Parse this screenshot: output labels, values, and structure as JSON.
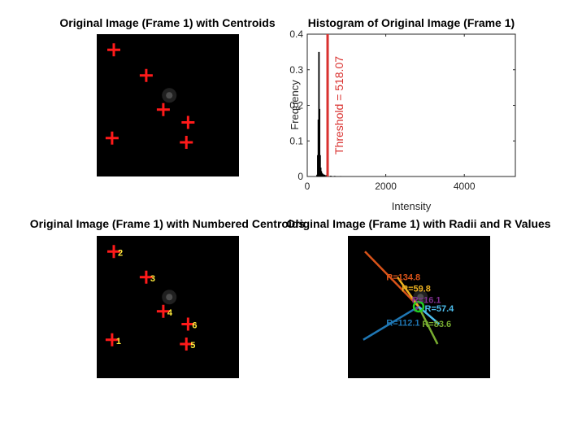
{
  "panels": {
    "p1": {
      "title": "Original Image (Frame 1) with Centroids"
    },
    "p2": {
      "title": "Histogram of Original Image (Frame 1)"
    },
    "p3": {
      "title": "Original Image (Frame 1) with Numbered Centroids"
    },
    "p4": {
      "title": "Original Image (Frame 1) with Radii and R Values"
    }
  },
  "colors": {
    "cross": "#ff1a1a",
    "label": "#ffeb3b",
    "threshold": "#d9312f",
    "center_circle": "#22cc22",
    "bars": "#000000"
  },
  "chart_data": [
    {
      "type": "scatter",
      "title": "Original Image (Frame 1) with Centroids",
      "marker": "+",
      "points_frac": [
        {
          "x": 0.2,
          "y": 0.11
        },
        {
          "x": 0.58,
          "y": 0.29
        },
        {
          "x": 0.78,
          "y": 0.53
        },
        {
          "x": 1.07,
          "y": 0.62
        },
        {
          "x": 0.18,
          "y": 0.73
        },
        {
          "x": 1.05,
          "y": 0.76
        }
      ]
    },
    {
      "type": "bar",
      "title": "Histogram of Original Image (Frame 1)",
      "xlabel": "Intensity",
      "ylabel": "Frequency",
      "xlim": [
        0,
        5300
      ],
      "ylim": [
        0,
        0.4
      ],
      "xticks": [
        "0",
        "2000",
        "4000"
      ],
      "yticks": [
        "0",
        "0.1",
        "0.2",
        "0.3",
        "0.4"
      ],
      "bins": [
        {
          "x": 250,
          "y": 0.005
        },
        {
          "x": 268,
          "y": 0.06
        },
        {
          "x": 283,
          "y": 0.16
        },
        {
          "x": 298,
          "y": 0.35
        },
        {
          "x": 313,
          "y": 0.19
        },
        {
          "x": 328,
          "y": 0.06
        },
        {
          "x": 343,
          "y": 0.025
        },
        {
          "x": 358,
          "y": 0.015
        },
        {
          "x": 373,
          "y": 0.01
        },
        {
          "x": 390,
          "y": 0.008
        },
        {
          "x": 410,
          "y": 0.006
        },
        {
          "x": 440,
          "y": 0.005
        },
        {
          "x": 480,
          "y": 0.004
        },
        {
          "x": 530,
          "y": 0.003
        },
        {
          "x": 600,
          "y": 0.002
        },
        {
          "x": 700,
          "y": 0.0015
        },
        {
          "x": 850,
          "y": 0.001
        }
      ],
      "threshold": {
        "value": 518.07,
        "label": "Threshold = 518.07"
      }
    },
    {
      "type": "scatter",
      "title": "Original Image (Frame 1) with Numbered Centroids",
      "marker": "+",
      "points_frac": [
        {
          "x": 0.18,
          "y": 0.73,
          "label": "1"
        },
        {
          "x": 0.2,
          "y": 0.11,
          "label": "2"
        },
        {
          "x": 0.58,
          "y": 0.29,
          "label": "3"
        },
        {
          "x": 0.78,
          "y": 0.53,
          "label": "4"
        },
        {
          "x": 1.05,
          "y": 0.76,
          "label": "5"
        },
        {
          "x": 1.07,
          "y": 0.62,
          "label": "6"
        }
      ]
    },
    {
      "type": "line",
      "title": "Original Image (Frame 1) with Radii and R Values",
      "center_frac": {
        "x": 0.72,
        "y": 0.52
      },
      "radii": [
        {
          "label": "R=112.1",
          "color": "#1f77b4",
          "end": {
            "x": 0.18,
            "y": 0.73
          },
          "lab": {
            "x": 0.45,
            "y": 0.63
          }
        },
        {
          "label": "R=134.8",
          "color": "#d95319",
          "end": {
            "x": 0.2,
            "y": 0.11
          },
          "lab": {
            "x": 0.45,
            "y": 0.31
          }
        },
        {
          "label": "R=59.8",
          "color": "#edb120",
          "end": {
            "x": 0.58,
            "y": 0.29
          },
          "lab": {
            "x": 0.63,
            "y": 0.39
          }
        },
        {
          "label": "R=16.1",
          "color": "#7e2f8e",
          "end": {
            "x": 0.78,
            "y": 0.53
          },
          "lab": {
            "x": 0.75,
            "y": 0.47
          }
        },
        {
          "label": "R=83.6",
          "color": "#77ac30",
          "end": {
            "x": 1.05,
            "y": 0.76
          },
          "lab": {
            "x": 0.87,
            "y": 0.64
          }
        },
        {
          "label": "R=57.4",
          "color": "#4dbeee",
          "end": {
            "x": 1.07,
            "y": 0.62
          },
          "lab": {
            "x": 0.9,
            "y": 0.53
          }
        }
      ]
    }
  ]
}
